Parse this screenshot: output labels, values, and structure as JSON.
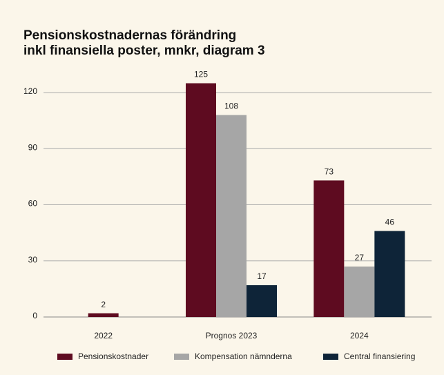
{
  "chart_data": {
    "type": "bar",
    "title": [
      "Pensionskostnadernas förändring",
      "inkl finansiella poster, mnkr, diagram 3"
    ],
    "categories": [
      "2022",
      "Prognos 2023",
      "2024"
    ],
    "series": [
      {
        "name": "Pensionskostnader",
        "color": "#5e0b20",
        "values": [
          2,
          125,
          73
        ]
      },
      {
        "name": "Kompensation nämnderna",
        "color": "#a6a6a6",
        "values": [
          null,
          108,
          27
        ]
      },
      {
        "name": "Central finansiering",
        "color": "#0e2438",
        "values": [
          null,
          17,
          46
        ]
      }
    ],
    "ylim": [
      0,
      130
    ],
    "yticks": [
      0,
      30,
      60,
      90,
      120
    ],
    "grid": true,
    "legend": "bottom"
  }
}
